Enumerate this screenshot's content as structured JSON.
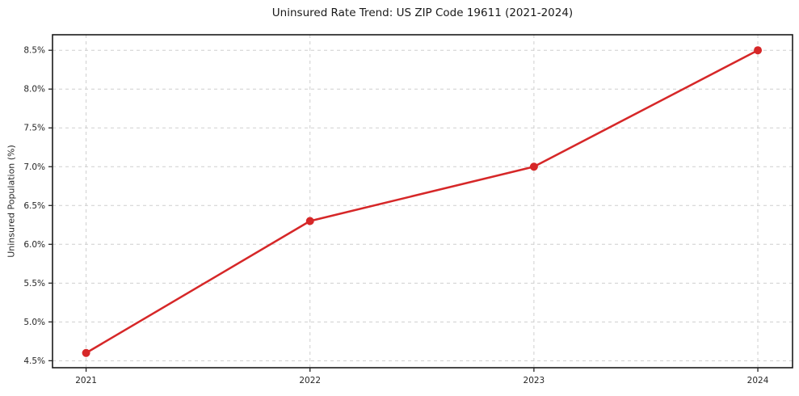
{
  "chart_data": {
    "type": "line",
    "title": "Uninsured Rate Trend: US ZIP Code 19611 (2021-2024)",
    "xlabel": "",
    "ylabel": "Uninsured Population (%)",
    "x": [
      2021,
      2022,
      2023,
      2024
    ],
    "xtick_labels": [
      "2021",
      "2022",
      "2023",
      "2024"
    ],
    "series": [
      {
        "name": "Uninsured rate",
        "values": [
          4.6,
          6.3,
          7.0,
          8.5
        ]
      }
    ],
    "yticks": [
      4.5,
      5.0,
      5.5,
      6.0,
      6.5,
      7.0,
      7.5,
      8.0,
      8.5
    ],
    "ytick_labels": [
      "4.5%",
      "5.0%",
      "5.5%",
      "6.0%",
      "6.5%",
      "7.0%",
      "7.5%",
      "8.0%",
      "8.5%"
    ],
    "xlim": [
      2020.85,
      2024.155
    ],
    "ylim": [
      4.41,
      8.7
    ],
    "grid": true,
    "grid_style": "dashed",
    "legend": "none",
    "colors": {
      "line": "#d62728",
      "marker": "#d62728",
      "grid": "#cfcfcf",
      "spine": "#1a1a1a",
      "tick": "#262626",
      "background": "#ffffff"
    },
    "marker": "circle",
    "marker_radius": 5,
    "line_width": 2.5
  }
}
